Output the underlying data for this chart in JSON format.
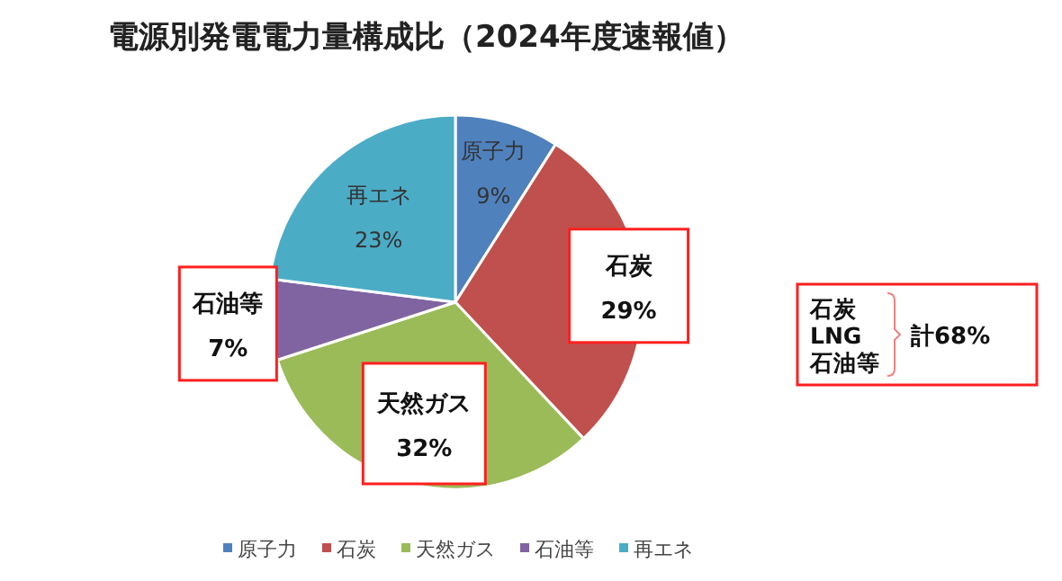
{
  "chart_data": {
    "type": "pie",
    "title": "電源別発電電力量構成比（2024年度速報値）",
    "categories": [
      "原子力",
      "石炭",
      "天然ガス",
      "石油等",
      "再エネ"
    ],
    "values": [
      9,
      29,
      32,
      7,
      23
    ],
    "value_labels": [
      "9%",
      "29%",
      "32%",
      "7%",
      "23%"
    ],
    "colors": [
      "#4f81bd",
      "#c0504d",
      "#9bbb59",
      "#8064a2",
      "#4bacc6"
    ],
    "legend": "bottom",
    "annotations": [
      "石炭\nLNG\n石油等",
      "計68%"
    ]
  }
}
